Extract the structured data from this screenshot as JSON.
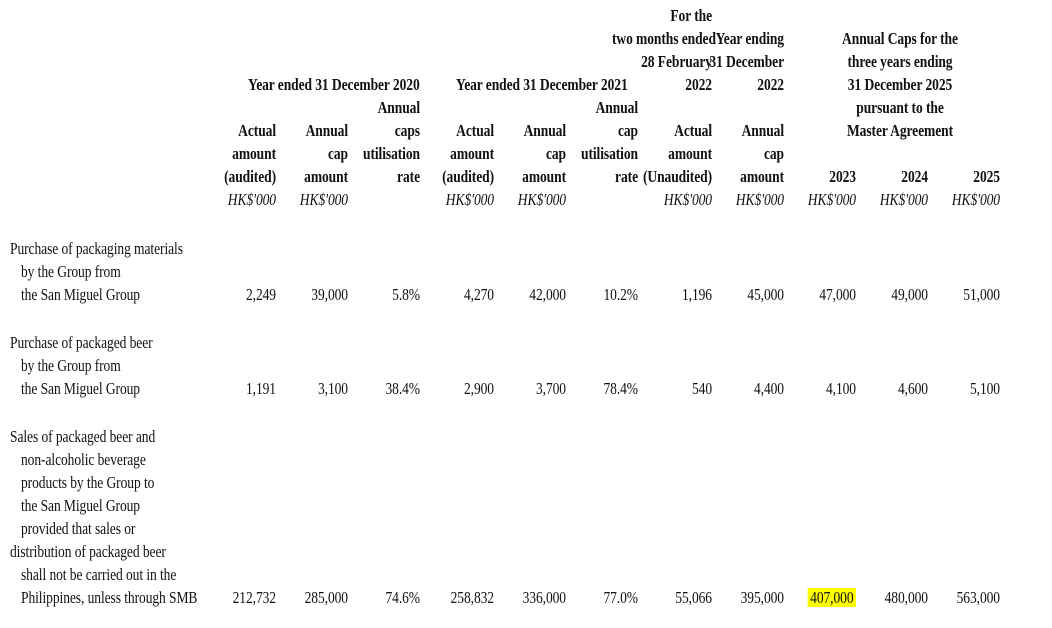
{
  "headers": {
    "period_2020": "Year ended 31 December 2020",
    "period_2021": "Year ended 31 December 2021",
    "period_two_months_2022": [
      "For the",
      "two months ended",
      "28 February",
      "2022"
    ],
    "period_year_2022": [
      "Year ending",
      "31 December",
      "2022"
    ],
    "annual_caps_group": [
      "Annual Caps for the",
      "three years ending",
      "31 December 2025",
      "pursuant to the",
      "Master Agreement"
    ],
    "actual_amount_audited": [
      "Actual",
      "amount",
      "(audited)"
    ],
    "annual_cap_amount": [
      "Annual",
      "cap",
      "amount"
    ],
    "annual_caps_utilisation_rate": [
      "Annual",
      "caps",
      "utilisation",
      "rate"
    ],
    "annual_cap_utilisation_rate": [
      "Annual",
      "cap",
      "utilisation",
      "rate"
    ],
    "actual_amount_unaudited": [
      "Actual",
      "amount",
      "(Unaudited)"
    ],
    "cap_years": [
      "2023",
      "2024",
      "2025"
    ],
    "unit": "HK$'000"
  },
  "rows": [
    {
      "label_lines": [
        "Purchase of packaging materials",
        "by the Group from",
        "the San Miguel Group"
      ],
      "values": [
        "2,249",
        "39,000",
        "5.8%",
        "4,270",
        "42,000",
        "10.2%",
        "1,196",
        "45,000",
        "47,000",
        "49,000",
        "51,000"
      ]
    },
    {
      "label_lines": [
        "Purchase of packaged beer",
        "by the Group from",
        "the San Miguel Group"
      ],
      "values": [
        "1,191",
        "3,100",
        "38.4%",
        "2,900",
        "3,700",
        "78.4%",
        "540",
        "4,400",
        "4,100",
        "4,600",
        "5,100"
      ]
    },
    {
      "label_lines": [
        "Sales of packaged beer and",
        "non-alcoholic beverage",
        "products by the Group to",
        "the San Miguel Group",
        "provided that sales or",
        "distribution of packaged beer",
        "shall not be carried out in the",
        "Philippines, unless through SMB"
      ],
      "values": [
        "212,732",
        "285,000",
        "74.6%",
        "258,832",
        "336,000",
        "77.0%",
        "55,066",
        "395,000",
        "407,000",
        "480,000",
        "563,000"
      ]
    }
  ],
  "highlight": {
    "color": "#ffff00",
    "cell": "407,000"
  }
}
